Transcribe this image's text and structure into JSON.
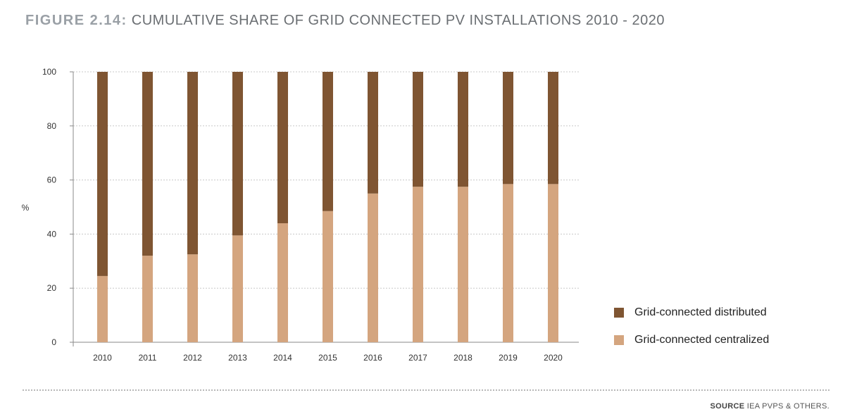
{
  "header": {
    "figure_label": "FIGURE 2.14:",
    "title": "CUMULATIVE SHARE OF GRID CONNECTED PV INSTALLATIONS 2010 - 2020"
  },
  "footer": {
    "source_label": "SOURCE",
    "source_text": "IEA PVPS & OTHERS."
  },
  "legend": {
    "items": [
      {
        "label": "Grid-connected distributed",
        "color": "#7f5532"
      },
      {
        "label": "Grid-connected centralized",
        "color": "#d4a57f"
      }
    ]
  },
  "chart_data": {
    "type": "bar",
    "stacked": true,
    "categories": [
      "2010",
      "2011",
      "2012",
      "2013",
      "2014",
      "2015",
      "2016",
      "2017",
      "2018",
      "2019",
      "2020"
    ],
    "series": [
      {
        "name": "Grid-connected centralized",
        "color": "#d4a57f",
        "values": [
          24.5,
          32,
          32.5,
          39.5,
          44,
          48.5,
          55,
          57.5,
          57.5,
          58.5,
          58.5
        ]
      },
      {
        "name": "Grid-connected distributed",
        "color": "#7f5532",
        "values": [
          75.5,
          68,
          67.5,
          60.5,
          56,
          51.5,
          45,
          42.5,
          42.5,
          41.5,
          41.5
        ]
      }
    ],
    "ylabel": "%",
    "xlabel": "",
    "ylim": [
      0,
      100
    ],
    "yticks": [
      0,
      20,
      40,
      60,
      80,
      100
    ],
    "grid": true,
    "legend_position": "right"
  }
}
